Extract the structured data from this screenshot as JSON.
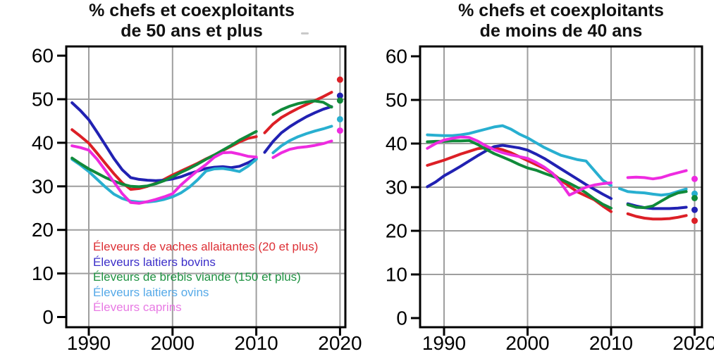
{
  "page": {
    "background": "#ffffff",
    "grid_color": "#9e9e9e",
    "axis_color": "#000000"
  },
  "chart_data": [
    {
      "type": "line",
      "title_line1": "% chefs et coexploitants",
      "title_line2": "de 50 ans et plus",
      "x_ticks": [
        "1990",
        "2000",
        "2010",
        "2020"
      ],
      "y_ticks": [
        "0",
        "10",
        "20",
        "30",
        "40",
        "50",
        "60"
      ],
      "x_range": [
        1987.3,
        2020.7
      ],
      "y_range": [
        -2.3,
        62.2
      ],
      "grid": true,
      "grid_color": "#9e9e9e",
      "show_legend": true,
      "series": [
        {
          "name": "Éleveurs de vaches allaitantes (20 et plus)",
          "color": "#dc1f26",
          "legend_color": "#dd3036",
          "segments": [
            {
              "years": [
                1988,
                1989,
                1990,
                1991,
                1992,
                1993,
                1994,
                1995,
                1996,
                1997,
                1998,
                1999,
                2000,
                2001,
                2002,
                2003,
                2004,
                2005,
                2006,
                2007,
                2008,
                2009,
                2010
              ],
              "values": [
                43.0,
                41.5,
                39.9,
                37.6,
                35.2,
                32.9,
                30.8,
                29.3,
                29.5,
                30.0,
                30.7,
                31.6,
                32.6,
                33.5,
                34.4,
                35.3,
                36.3,
                37.2,
                38.2,
                39.2,
                40.2,
                41.0,
                41.4
              ]
            },
            {
              "years": [
                2011,
                2012,
                2013,
                2014,
                2015,
                2016,
                2017,
                2018,
                2019
              ],
              "values": [
                42.3,
                44.3,
                45.8,
                46.9,
                47.9,
                48.8,
                49.7,
                50.6,
                51.6
              ]
            }
          ],
          "census_2020": 54.5
        },
        {
          "name": "Éleveurs laitiers bovins",
          "color": "#2121b2",
          "legend_color": "#3c2fc9",
          "segments": [
            {
              "years": [
                1988,
                1989,
                1990,
                1991,
                1992,
                1993,
                1994,
                1995,
                1996,
                1997,
                1998,
                1999,
                2000,
                2001,
                2002,
                2003,
                2004,
                2005,
                2006,
                2007,
                2008,
                2009,
                2010
              ],
              "values": [
                49.2,
                47.4,
                45.3,
                42.4,
                39.4,
                36.4,
                33.8,
                32.0,
                31.6,
                31.4,
                31.3,
                31.4,
                31.7,
                32.2,
                32.9,
                33.5,
                34.1,
                34.4,
                34.5,
                34.3,
                34.6,
                35.4,
                36.4
              ]
            },
            {
              "years": [
                2011,
                2012,
                2013,
                2014,
                2015,
                2016,
                2017,
                2018,
                2019
              ],
              "values": [
                37.8,
                40.3,
                42.3,
                43.7,
                44.9,
                46.0,
                46.9,
                47.7,
                48.3
              ]
            }
          ],
          "census_2020": 50.8
        },
        {
          "name": "Éleveurs de brebis viande (150 et plus)",
          "color": "#108a3a",
          "legend_color": "#1f9242",
          "segments": [
            {
              "years": [
                1988,
                1989,
                1990,
                1991,
                1992,
                1993,
                1994,
                1995,
                1996,
                1997,
                1998,
                1999,
                2000,
                2001,
                2002,
                2003,
                2004,
                2005,
                2006,
                2007,
                2008,
                2009,
                2010
              ],
              "values": [
                36.5,
                35.2,
                34.0,
                33.0,
                32.0,
                31.2,
                30.5,
                30.0,
                29.9,
                30.1,
                30.6,
                31.3,
                32.2,
                33.2,
                34.1,
                35.1,
                36.2,
                37.2,
                38.3,
                39.4,
                40.6,
                41.6,
                42.6
              ]
            },
            {
              "years": [
                2012,
                2013,
                2014,
                2015,
                2016,
                2017,
                2018,
                2019
              ],
              "values": [
                46.5,
                47.6,
                48.4,
                49.0,
                49.4,
                49.6,
                49.3,
                48.2
              ]
            }
          ],
          "census_2020": 49.7
        },
        {
          "name": "Éleveurs laitiers ovins",
          "color": "#28afd0",
          "legend_color": "#55a9e8",
          "segments": [
            {
              "years": [
                1988,
                1989,
                1990,
                1991,
                1992,
                1993,
                1994,
                1995,
                1996,
                1997,
                1998,
                1999,
                2000,
                2001,
                2002,
                2003,
                2004,
                2005,
                2006,
                2007,
                2008,
                2009,
                2010
              ],
              "values": [
                36.2,
                34.9,
                33.4,
                31.6,
                29.8,
                28.2,
                27.2,
                26.6,
                26.4,
                26.4,
                26.6,
                27.0,
                27.6,
                28.5,
                29.8,
                31.5,
                33.5,
                34.0,
                34.1,
                33.8,
                33.4,
                34.6,
                36.2
              ]
            },
            {
              "years": [
                2012,
                2013,
                2014,
                2015,
                2016,
                2017,
                2018,
                2019
              ],
              "values": [
                37.7,
                39.3,
                40.5,
                41.4,
                42.1,
                42.7,
                43.2,
                43.8
              ]
            }
          ],
          "census_2020": 45.4
        },
        {
          "name": "Éleveurs caprins",
          "color": "#ee2be0",
          "legend_color": "#e87ae4",
          "segments": [
            {
              "years": [
                1988,
                1989,
                1990,
                1991,
                1992,
                1993,
                1994,
                1995,
                1996,
                1997,
                1998,
                1999,
                2000,
                2001,
                2002,
                2003,
                2004,
                2005,
                2006,
                2007,
                2008,
                2009,
                2010
              ],
              "values": [
                39.3,
                38.9,
                38.3,
                36.2,
                33.6,
                31.0,
                28.3,
                26.3,
                26.1,
                26.5,
                27.0,
                27.6,
                28.3,
                30.3,
                32.0,
                33.6,
                35.0,
                36.7,
                37.7,
                37.8,
                37.4,
                36.9,
                36.7
              ]
            },
            {
              "years": [
                2012,
                2013,
                2014,
                2015,
                2016,
                2017,
                2018,
                2019
              ],
              "values": [
                36.6,
                37.7,
                38.5,
                38.9,
                39.1,
                39.4,
                39.8,
                40.4
              ]
            }
          ],
          "census_2020": 42.8
        }
      ]
    },
    {
      "type": "line",
      "title_line1": "% chefs et coexploitants",
      "title_line2": "de moins de 40 ans",
      "x_ticks": [
        "1990",
        "2000",
        "2010",
        "2020"
      ],
      "y_ticks": [
        "0",
        "10",
        "20",
        "30",
        "40",
        "50",
        "60"
      ],
      "x_range": [
        1987.1,
        2020.9
      ],
      "y_range": [
        -2.3,
        62.2
      ],
      "grid": true,
      "grid_color": "#9e9e9e",
      "show_legend": false,
      "series": [
        {
          "name": "Éleveurs de vaches allaitantes (20 et plus)",
          "color": "#dc1f26",
          "legend_color": "#dd3036",
          "segments": [
            {
              "years": [
                1988,
                1989,
                1990,
                1991,
                1992,
                1993,
                1994,
                1995,
                1996,
                1997,
                1998,
                1999,
                2000,
                2001,
                2002,
                2003,
                2004,
                2005,
                2006,
                2007,
                2008,
                2009,
                2010
              ],
              "values": [
                35.0,
                35.6,
                36.2,
                36.9,
                37.6,
                38.2,
                38.8,
                39.1,
                39.0,
                38.6,
                37.9,
                37.0,
                36.1,
                35.2,
                34.3,
                33.1,
                31.6,
                30.2,
                28.9,
                28.0,
                27.1,
                25.7,
                24.4
              ]
            },
            {
              "years": [
                2012,
                2013,
                2014,
                2015,
                2016,
                2017,
                2018,
                2019
              ],
              "values": [
                23.9,
                23.3,
                22.9,
                22.7,
                22.7,
                22.8,
                23.1,
                23.5
              ]
            }
          ],
          "census_2020": 22.3
        },
        {
          "name": "Éleveurs laitiers bovins",
          "color": "#2121b2",
          "legend_color": "#3c2fc9",
          "segments": [
            {
              "years": [
                1988,
                1989,
                1990,
                1991,
                1992,
                1993,
                1994,
                1995,
                1996,
                1997,
                1998,
                1999,
                2000,
                2001,
                2002,
                2003,
                2004,
                2005,
                2006,
                2007,
                2008,
                2009,
                2010
              ],
              "values": [
                30.1,
                31.2,
                32.6,
                33.7,
                34.8,
                36.0,
                37.2,
                38.3,
                39.3,
                39.6,
                39.3,
                39.0,
                38.5,
                37.6,
                36.6,
                35.4,
                34.2,
                33.0,
                31.8,
                30.6,
                29.5,
                28.4,
                27.4
              ]
            },
            {
              "years": [
                2012,
                2013,
                2014,
                2015,
                2016,
                2017,
                2018,
                2019
              ],
              "values": [
                26.2,
                25.7,
                25.3,
                25.1,
                25.1,
                25.1,
                25.2,
                25.4
              ]
            }
          ],
          "census_2020": 24.8
        },
        {
          "name": "Éleveurs de brebis viande (150 et plus)",
          "color": "#108a3a",
          "legend_color": "#1f9242",
          "segments": [
            {
              "years": [
                1988,
                1989,
                1990,
                1991,
                1992,
                1993,
                1994,
                1995,
                1996,
                1997,
                1998,
                1999,
                2000,
                2001,
                2002,
                2003,
                2004,
                2005,
                2006,
                2007,
                2008,
                2009,
                2010
              ],
              "values": [
                40.4,
                40.5,
                40.5,
                40.6,
                40.6,
                40.7,
                39.8,
                38.7,
                37.7,
                36.9,
                36.1,
                35.2,
                34.4,
                33.9,
                33.2,
                32.5,
                31.8,
                30.9,
                29.9,
                28.7,
                27.3,
                26.1,
                25.2
              ]
            },
            {
              "years": [
                2012,
                2013,
                2014,
                2015,
                2016,
                2017,
                2018,
                2019
              ],
              "values": [
                26.0,
                25.4,
                25.3,
                25.7,
                26.8,
                27.9,
                28.7,
                29.0
              ]
            }
          ],
          "census_2020": 27.5
        },
        {
          "name": "Éleveurs laitiers ovins",
          "color": "#28afd0",
          "legend_color": "#55a9e8",
          "segments": [
            {
              "years": [
                1988,
                1989,
                1990,
                1991,
                1992,
                1993,
                1994,
                1995,
                1996,
                1997,
                1998,
                1999,
                2000,
                2001,
                2002,
                2003,
                2004,
                2005,
                2006,
                2007,
                2008,
                2009,
                2010
              ],
              "values": [
                42.0,
                41.9,
                41.8,
                41.8,
                42.0,
                42.3,
                42.8,
                43.3,
                43.8,
                44.1,
                43.3,
                42.2,
                41.3,
                40.2,
                39.1,
                38.2,
                37.3,
                36.8,
                36.3,
                36.0,
                33.8,
                31.6,
                30.4
              ]
            },
            {
              "years": [
                2011,
                2012,
                2013,
                2014,
                2015,
                2016,
                2017,
                2018,
                2019
              ],
              "values": [
                29.7,
                29.0,
                28.8,
                28.7,
                28.4,
                28.2,
                28.4,
                29.0,
                29.6
              ]
            }
          ],
          "census_2020": 28.5
        },
        {
          "name": "Éleveurs caprins",
          "color": "#ee2be0",
          "legend_color": "#e87ae4",
          "segments": [
            {
              "years": [
                1988,
                1989,
                1990,
                1991,
                1992,
                1993,
                1994,
                1995,
                1996,
                1997,
                1998,
                1999,
                2000,
                2001,
                2002,
                2003,
                2004,
                2005,
                2006,
                2007,
                2008,
                2009,
                2010
              ],
              "values": [
                38.9,
                40.0,
                40.8,
                41.2,
                41.5,
                41.4,
                40.6,
                39.5,
                38.6,
                37.9,
                37.4,
                37.0,
                36.6,
                35.7,
                34.6,
                33.2,
                30.9,
                28.2,
                29.1,
                30.0,
                30.5,
                30.8,
                31.0
              ]
            },
            {
              "years": [
                2012,
                2013,
                2014,
                2015,
                2016,
                2017,
                2018,
                2019
              ],
              "values": [
                32.2,
                32.3,
                32.2,
                31.9,
                32.2,
                32.8,
                33.3,
                33.8
              ]
            }
          ],
          "census_2020": 31.9
        }
      ]
    }
  ]
}
